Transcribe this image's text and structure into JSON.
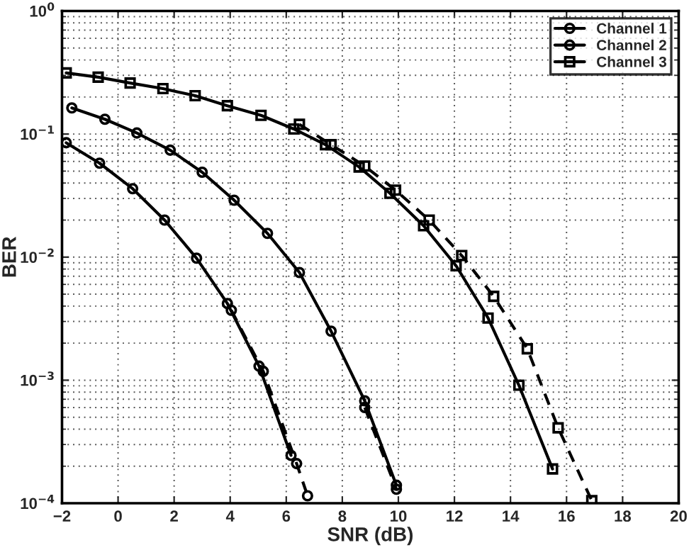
{
  "chart_data": {
    "type": "line",
    "xlabel": "SNR (dB)",
    "ylabel": "BER",
    "log": "y",
    "grid": true,
    "legend": "top right",
    "xlim": [
      -2,
      20
    ],
    "xticks": [
      {
        "value": -2,
        "label": "−2"
      },
      0,
      2,
      4,
      6,
      8,
      10,
      12,
      14,
      16,
      18,
      20
    ],
    "ylim": [
      0.0001,
      1
    ],
    "yticks": [
      {
        "value": 0.0001,
        "label": "10$^{−4}$"
      },
      {
        "value": 0.001,
        "label": "10$^{−3}$"
      },
      {
        "value": 0.01,
        "label": "10$^{−2}$"
      },
      {
        "value": 0.1,
        "label": "10$^{−1}$"
      },
      {
        "value": 1,
        "label": "10$^{0}$"
      }
    ],
    "series": [
      {
        "name": "Channel 1",
        "color": "#000000",
        "marker": "circle",
        "line_style": "solid",
        "x": [
          -1.85,
          -0.66,
          0.52,
          1.66,
          2.8,
          3.9,
          5.03,
          6.17
        ],
        "values": [
          0.085,
          0.058,
          0.036,
          0.02,
          0.0098,
          0.0042,
          0.0013,
          0.000245
        ]
      },
      {
        "name": "Channel 2",
        "color": "#000000",
        "marker": "circle",
        "line_style": "solid",
        "x": [
          -1.65,
          -0.47,
          0.67,
          1.86,
          3.0,
          4.14,
          5.33,
          6.47,
          7.6,
          8.8,
          9.93
        ],
        "values": [
          0.163,
          0.132,
          0.102,
          0.074,
          0.049,
          0.029,
          0.0156,
          0.0075,
          0.0025,
          0.00068,
          0.00014
        ]
      },
      {
        "name": "Channel 3",
        "color": "#000000",
        "marker": "square",
        "line_style": "solid",
        "x": [
          -1.85,
          -0.71,
          0.43,
          1.6,
          2.75,
          3.9,
          5.1,
          6.27,
          7.4,
          8.6,
          9.7,
          10.9,
          12.06,
          13.2,
          14.3,
          15.5
        ],
        "values": [
          0.314,
          0.29,
          0.26,
          0.234,
          0.205,
          0.17,
          0.142,
          0.11,
          0.082,
          0.054,
          0.033,
          0.018,
          0.0085,
          0.0032,
          0.00091,
          0.00019
        ]
      },
      {
        "color": "#000000",
        "marker": "circle",
        "line_style": "dashed",
        "x": [
          4.04,
          5.18,
          6.37,
          6.76
        ],
        "values": [
          0.0037,
          0.00118,
          0.00021,
          0.000115
        ]
      },
      {
        "color": "#000000",
        "marker": "circle",
        "line_style": "dashed",
        "x": [
          8.8,
          9.93
        ],
        "values": [
          0.0006,
          0.00013
        ]
      },
      {
        "color": "#000000",
        "marker": "square",
        "line_style": "dashed",
        "x": [
          6.47,
          7.6,
          8.8,
          9.9,
          11.1,
          12.26,
          13.4,
          14.6,
          15.7,
          16.9
        ],
        "values": [
          0.12,
          0.082,
          0.055,
          0.035,
          0.02,
          0.0103,
          0.0048,
          0.0018,
          0.00041,
          0.000105
        ]
      }
    ]
  }
}
